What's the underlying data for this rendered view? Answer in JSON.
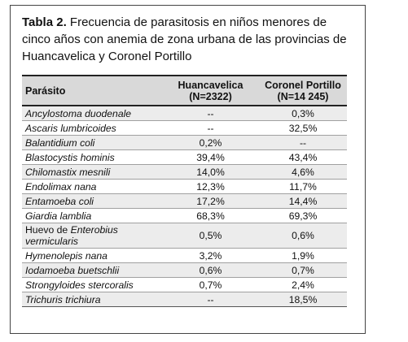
{
  "caption": {
    "label": "Tabla 2.",
    "text": "Frecuencia de parasitosis en niños menores de cinco años con anemia de zona urbana de las provincias de Huancavelica y Coronel Portillo"
  },
  "table": {
    "headers": {
      "col1": "Parásito",
      "col2_line1": "Huancavelica",
      "col2_line2": "(N=2322)",
      "col3_line1": "Coronel Portillo",
      "col3_line2": "(N=14 245)"
    },
    "rows": [
      {
        "name": "Ancylostoma duodenale",
        "huancavelica": "--",
        "coronel_portillo": "0,3%"
      },
      {
        "name": "Ascaris lumbricoides",
        "huancavelica": "--",
        "coronel_portillo": "32,5%"
      },
      {
        "name": "Balantidium coli",
        "huancavelica": "0,2%",
        "coronel_portillo": "--"
      },
      {
        "name": "Blastocystis hominis",
        "huancavelica": "39,4%",
        "coronel_portillo": "43,4%"
      },
      {
        "name": "Chilomastix mesnili",
        "huancavelica": "14,0%",
        "coronel_portillo": "4,6%"
      },
      {
        "name": "Endolimax nana",
        "huancavelica": "12,3%",
        "coronel_portillo": "11,7%"
      },
      {
        "name": "Entamoeba coli",
        "huancavelica": "17,2%",
        "coronel_portillo": "14,4%"
      },
      {
        "name": "Giardia lamblia",
        "huancavelica": "68,3%",
        "coronel_portillo": "69,3%"
      },
      {
        "name_prefix": "Huevo de ",
        "name_italic": "Enterobius vermicularis",
        "huancavelica": "0,5%",
        "coronel_portillo": "0,6%"
      },
      {
        "name": "Hymenolepis nana",
        "huancavelica": "3,2%",
        "coronel_portillo": "1,9%"
      },
      {
        "name": "Iodamoeba buetschlii",
        "huancavelica": "0,6%",
        "coronel_portillo": "0,7%"
      },
      {
        "name": "Strongyloides stercoralis",
        "huancavelica": "0,7%",
        "coronel_portillo": "2,4%"
      },
      {
        "name": "Trichuris trichiura",
        "huancavelica": "--",
        "coronel_portillo": "18,5%"
      }
    ]
  }
}
